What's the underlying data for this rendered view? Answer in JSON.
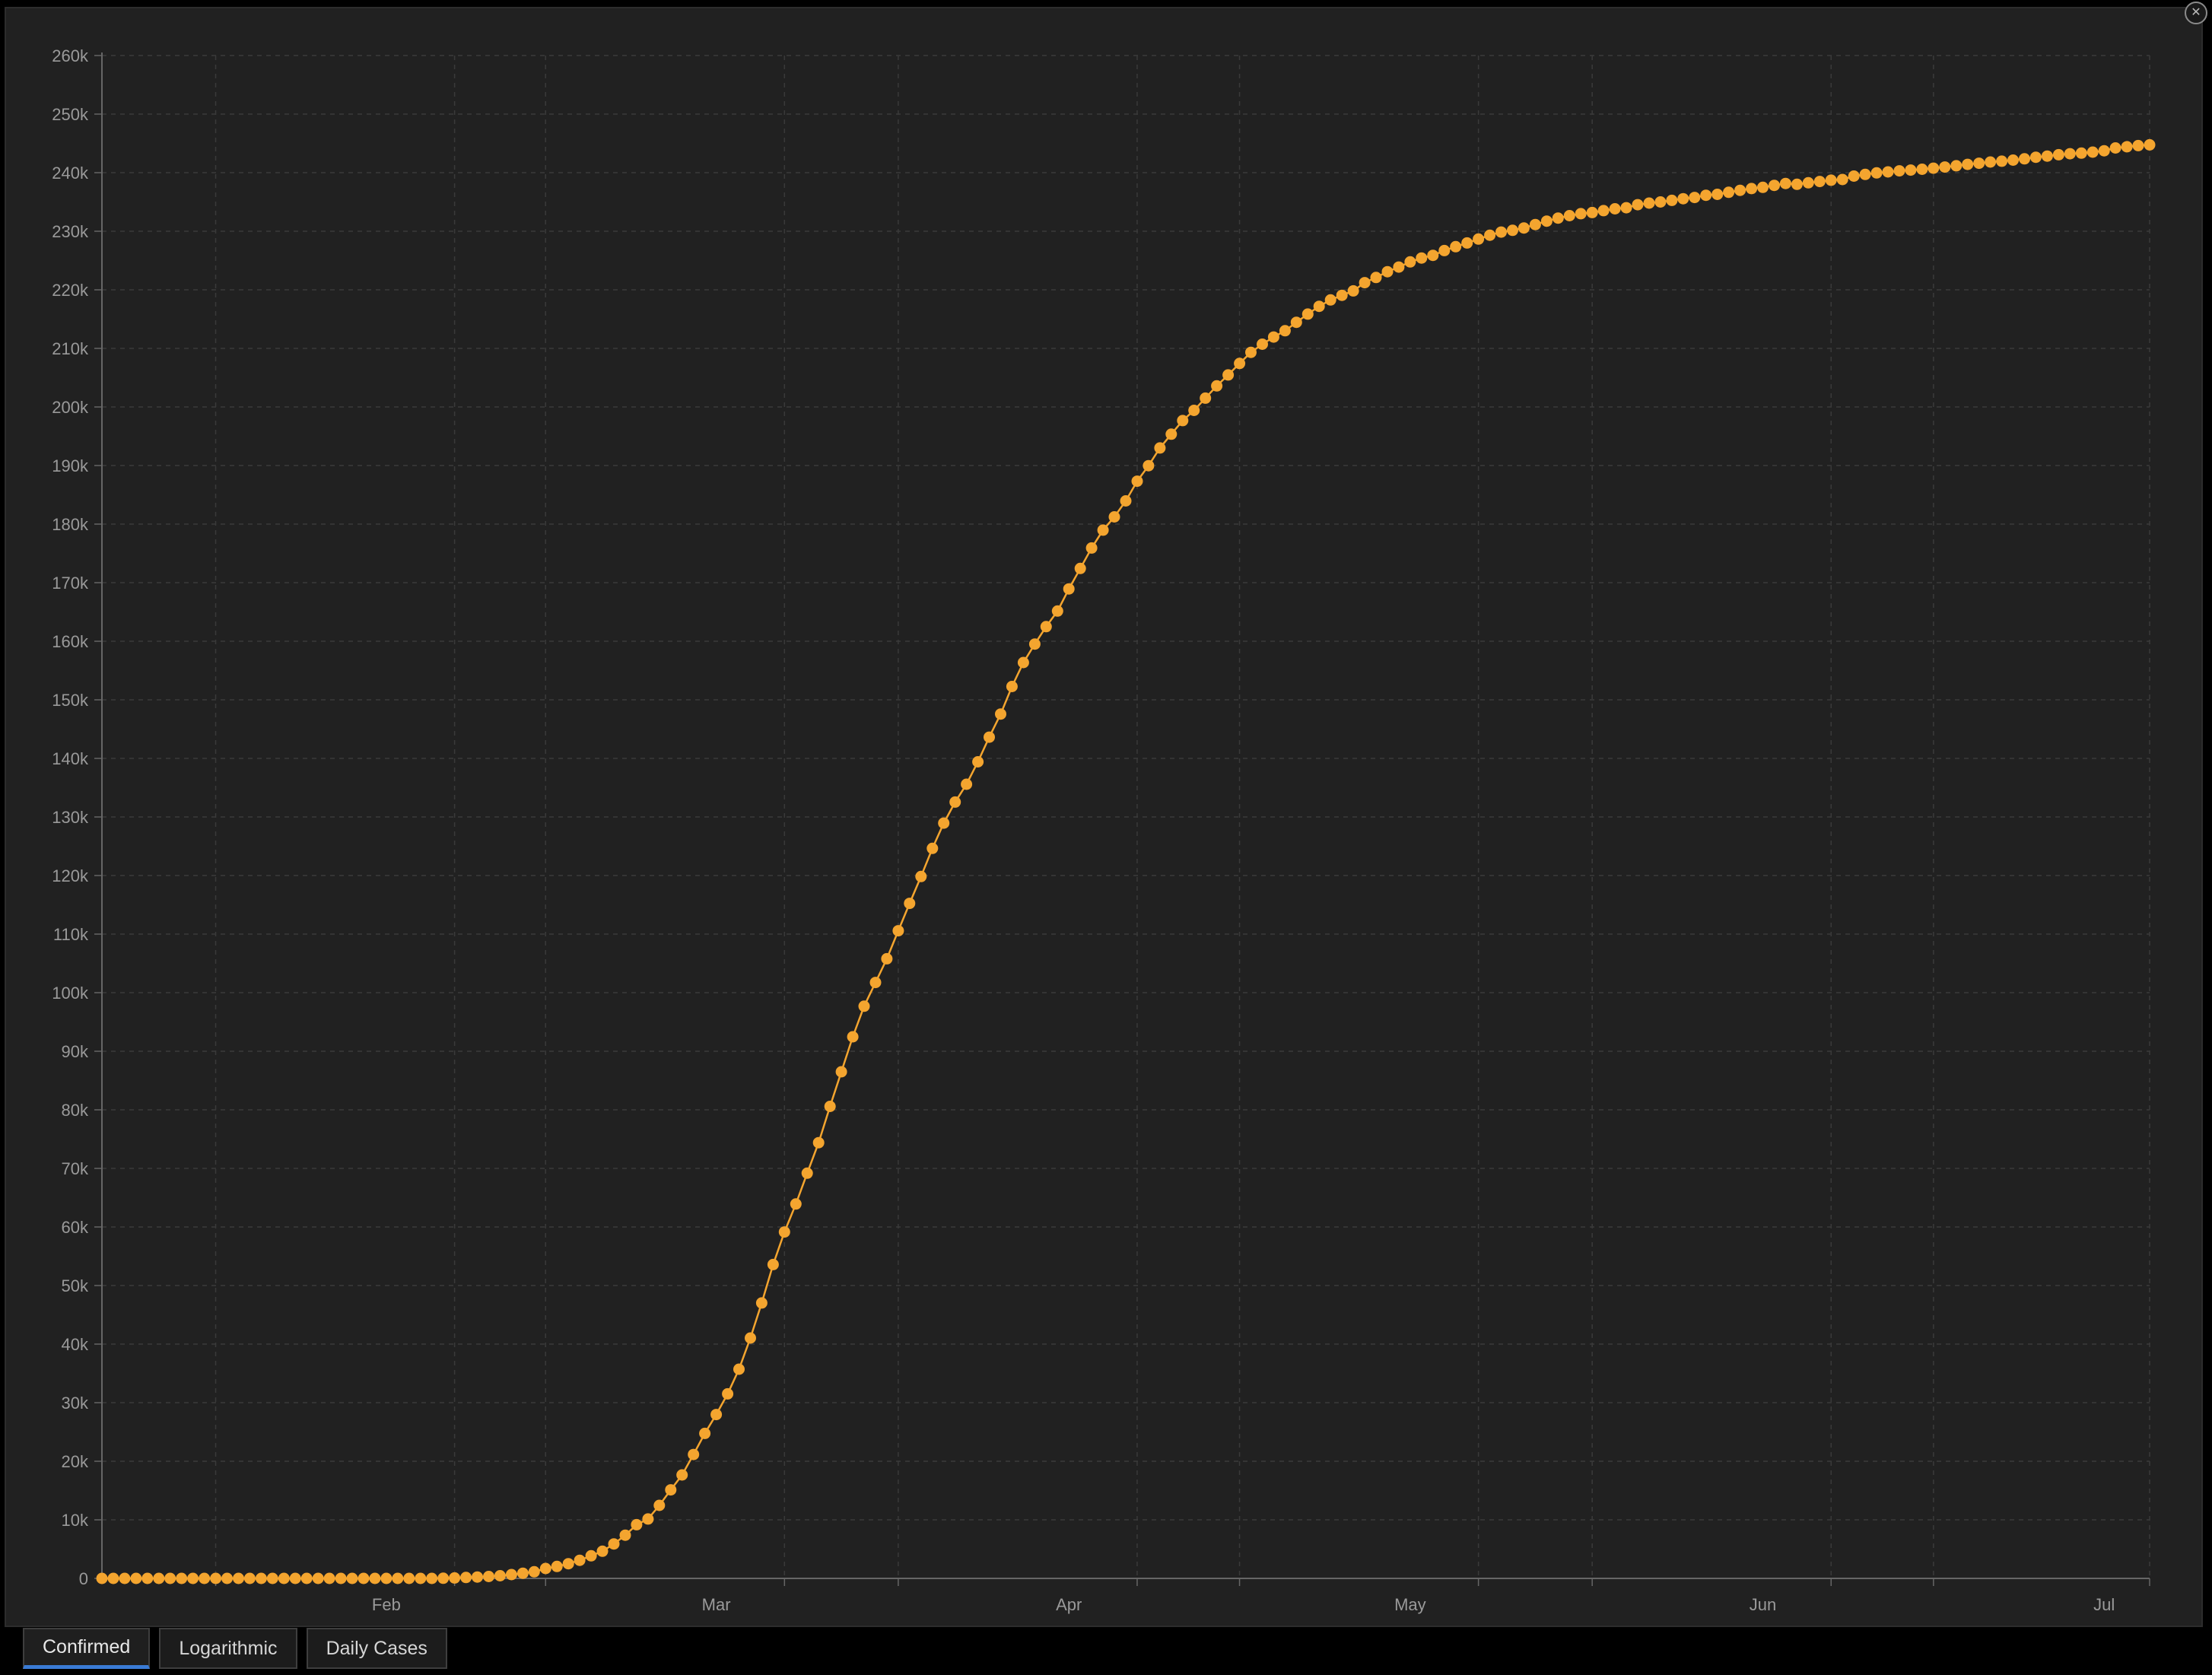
{
  "tabs": [
    {
      "label": "Confirmed",
      "active": true
    },
    {
      "label": "Logarithmic",
      "active": false
    },
    {
      "label": "Daily Cases",
      "active": false
    }
  ],
  "colors": {
    "series": "#f4a52f",
    "background": "#212121",
    "grid": "#3a3a3a",
    "tab_accent": "#3a7bd5"
  },
  "corner_icon": "collapse-icon",
  "chart_data": {
    "type": "line",
    "title": "",
    "xlabel": "",
    "ylabel": "",
    "ylim": [
      0,
      260000
    ],
    "xlim": [
      "2020-01-22",
      "2020-07-20"
    ],
    "grid": true,
    "x_tick_labels": [
      {
        "label": "Feb",
        "date": "2020-02-01"
      },
      {
        "label": "Mar",
        "date": "2020-03-01"
      },
      {
        "label": "Apr",
        "date": "2020-04-01"
      },
      {
        "label": "May",
        "date": "2020-05-01"
      },
      {
        "label": "Jun",
        "date": "2020-06-01"
      },
      {
        "label": "Jul",
        "date": "2020-07-01"
      }
    ],
    "x_gridlines": [
      "2020-02-01",
      "2020-02-22",
      "2020-03-01",
      "2020-03-22",
      "2020-04-01",
      "2020-04-22",
      "2020-05-01",
      "2020-05-22",
      "2020-06-01",
      "2020-06-22",
      "2020-07-01",
      "2020-07-20"
    ],
    "y_ticks": [
      {
        "label": "0",
        "value": 0
      },
      {
        "label": "10k",
        "value": 10000
      },
      {
        "label": "20k",
        "value": 20000
      },
      {
        "label": "30k",
        "value": 30000
      },
      {
        "label": "40k",
        "value": 40000
      },
      {
        "label": "50k",
        "value": 50000
      },
      {
        "label": "60k",
        "value": 60000
      },
      {
        "label": "70k",
        "value": 70000
      },
      {
        "label": "80k",
        "value": 80000
      },
      {
        "label": "90k",
        "value": 90000
      },
      {
        "label": "100k",
        "value": 100000
      },
      {
        "label": "110k",
        "value": 110000
      },
      {
        "label": "120k",
        "value": 120000
      },
      {
        "label": "130k",
        "value": 130000
      },
      {
        "label": "140k",
        "value": 140000
      },
      {
        "label": "150k",
        "value": 150000
      },
      {
        "label": "160k",
        "value": 160000
      },
      {
        "label": "170k",
        "value": 170000
      },
      {
        "label": "180k",
        "value": 180000
      },
      {
        "label": "190k",
        "value": 190000
      },
      {
        "label": "200k",
        "value": 200000
      },
      {
        "label": "210k",
        "value": 210000
      },
      {
        "label": "220k",
        "value": 220000
      },
      {
        "label": "230k",
        "value": 230000
      },
      {
        "label": "240k",
        "value": 240000
      },
      {
        "label": "250k",
        "value": 250000
      },
      {
        "label": "260k",
        "value": 260000
      }
    ],
    "series": [
      {
        "points": [
          [
            "2020-01-22",
            0
          ],
          [
            "2020-01-23",
            0
          ],
          [
            "2020-01-24",
            0
          ],
          [
            "2020-01-25",
            0
          ],
          [
            "2020-01-26",
            0
          ],
          [
            "2020-01-27",
            0
          ],
          [
            "2020-01-28",
            0
          ],
          [
            "2020-01-29",
            0
          ],
          [
            "2020-01-30",
            0
          ],
          [
            "2020-01-31",
            2
          ],
          [
            "2020-02-01",
            2
          ],
          [
            "2020-02-02",
            2
          ],
          [
            "2020-02-03",
            2
          ],
          [
            "2020-02-04",
            2
          ],
          [
            "2020-02-05",
            2
          ],
          [
            "2020-02-06",
            2
          ],
          [
            "2020-02-07",
            3
          ],
          [
            "2020-02-08",
            3
          ],
          [
            "2020-02-09",
            3
          ],
          [
            "2020-02-10",
            3
          ],
          [
            "2020-02-11",
            3
          ],
          [
            "2020-02-12",
            3
          ],
          [
            "2020-02-13",
            3
          ],
          [
            "2020-02-14",
            3
          ],
          [
            "2020-02-15",
            3
          ],
          [
            "2020-02-16",
            3
          ],
          [
            "2020-02-17",
            3
          ],
          [
            "2020-02-18",
            3
          ],
          [
            "2020-02-19",
            3
          ],
          [
            "2020-02-20",
            3
          ],
          [
            "2020-02-21",
            20
          ],
          [
            "2020-02-22",
            79
          ],
          [
            "2020-02-23",
            150
          ],
          [
            "2020-02-24",
            229
          ],
          [
            "2020-02-25",
            322
          ],
          [
            "2020-02-26",
            453
          ],
          [
            "2020-02-27",
            655
          ],
          [
            "2020-02-28",
            888
          ],
          [
            "2020-02-29",
            1128
          ],
          [
            "2020-03-01",
            1694
          ],
          [
            "2020-03-02",
            2036
          ],
          [
            "2020-03-03",
            2502
          ],
          [
            "2020-03-04",
            3089
          ],
          [
            "2020-03-05",
            3858
          ],
          [
            "2020-03-06",
            4636
          ],
          [
            "2020-03-07",
            5883
          ],
          [
            "2020-03-08",
            7375
          ],
          [
            "2020-03-09",
            9172
          ],
          [
            "2020-03-10",
            10149
          ],
          [
            "2020-03-11",
            12462
          ],
          [
            "2020-03-12",
            15113
          ],
          [
            "2020-03-13",
            17660
          ],
          [
            "2020-03-14",
            21157
          ],
          [
            "2020-03-15",
            24747
          ],
          [
            "2020-03-16",
            27980
          ],
          [
            "2020-03-17",
            31506
          ],
          [
            "2020-03-18",
            35713
          ],
          [
            "2020-03-19",
            41035
          ],
          [
            "2020-03-20",
            47021
          ],
          [
            "2020-03-21",
            53578
          ],
          [
            "2020-03-22",
            59138
          ],
          [
            "2020-03-23",
            63927
          ],
          [
            "2020-03-24",
            69176
          ],
          [
            "2020-03-25",
            74386
          ],
          [
            "2020-03-26",
            80589
          ],
          [
            "2020-03-27",
            86498
          ],
          [
            "2020-03-28",
            92472
          ],
          [
            "2020-03-29",
            97689
          ],
          [
            "2020-03-30",
            101739
          ],
          [
            "2020-03-31",
            105792
          ],
          [
            "2020-04-01",
            110574
          ],
          [
            "2020-04-02",
            115242
          ],
          [
            "2020-04-03",
            119827
          ],
          [
            "2020-04-04",
            124632
          ],
          [
            "2020-04-05",
            128948
          ],
          [
            "2020-04-06",
            132547
          ],
          [
            "2020-04-07",
            135586
          ],
          [
            "2020-04-08",
            139422
          ],
          [
            "2020-04-09",
            143626
          ],
          [
            "2020-04-10",
            147577
          ],
          [
            "2020-04-11",
            152271
          ],
          [
            "2020-04-12",
            156363
          ],
          [
            "2020-04-13",
            159516
          ],
          [
            "2020-04-14",
            162488
          ],
          [
            "2020-04-15",
            165155
          ],
          [
            "2020-04-16",
            168941
          ],
          [
            "2020-04-17",
            172434
          ],
          [
            "2020-04-18",
            175925
          ],
          [
            "2020-04-19",
            178972
          ],
          [
            "2020-04-20",
            181228
          ],
          [
            "2020-04-21",
            183957
          ],
          [
            "2020-04-22",
            187327
          ],
          [
            "2020-04-23",
            189973
          ],
          [
            "2020-04-24",
            192994
          ],
          [
            "2020-04-25",
            195351
          ],
          [
            "2020-04-26",
            197675
          ],
          [
            "2020-04-27",
            199414
          ],
          [
            "2020-04-28",
            201505
          ],
          [
            "2020-04-29",
            203591
          ],
          [
            "2020-04-30",
            205463
          ],
          [
            "2020-05-01",
            207428
          ],
          [
            "2020-05-02",
            209328
          ],
          [
            "2020-05-03",
            210717
          ],
          [
            "2020-05-04",
            211938
          ],
          [
            "2020-05-05",
            213013
          ],
          [
            "2020-05-06",
            214457
          ],
          [
            "2020-05-07",
            215858
          ],
          [
            "2020-05-08",
            217185
          ],
          [
            "2020-05-09",
            218268
          ],
          [
            "2020-05-10",
            219070
          ],
          [
            "2020-05-11",
            219814
          ],
          [
            "2020-05-12",
            221216
          ],
          [
            "2020-05-13",
            222104
          ],
          [
            "2020-05-14",
            223096
          ],
          [
            "2020-05-15",
            223885
          ],
          [
            "2020-05-16",
            224760
          ],
          [
            "2020-05-17",
            225435
          ],
          [
            "2020-05-18",
            225886
          ],
          [
            "2020-05-19",
            226699
          ],
          [
            "2020-05-20",
            227364
          ],
          [
            "2020-05-21",
            228006
          ],
          [
            "2020-05-22",
            228658
          ],
          [
            "2020-05-23",
            229327
          ],
          [
            "2020-05-24",
            229858
          ],
          [
            "2020-05-25",
            230158
          ],
          [
            "2020-05-26",
            230555
          ],
          [
            "2020-05-27",
            231139
          ],
          [
            "2020-05-28",
            231732
          ],
          [
            "2020-05-29",
            232248
          ],
          [
            "2020-05-30",
            232664
          ],
          [
            "2020-05-31",
            232997
          ],
          [
            "2020-06-01",
            233197
          ],
          [
            "2020-06-02",
            233515
          ],
          [
            "2020-06-03",
            233836
          ],
          [
            "2020-06-04",
            234013
          ],
          [
            "2020-06-05",
            234531
          ],
          [
            "2020-06-06",
            234801
          ],
          [
            "2020-06-07",
            234998
          ],
          [
            "2020-06-08",
            235278
          ],
          [
            "2020-06-09",
            235561
          ],
          [
            "2020-06-10",
            235763
          ],
          [
            "2020-06-11",
            236142
          ],
          [
            "2020-06-12",
            236305
          ],
          [
            "2020-06-13",
            236651
          ],
          [
            "2020-06-14",
            236989
          ],
          [
            "2020-06-15",
            237290
          ],
          [
            "2020-06-16",
            237500
          ],
          [
            "2020-06-17",
            237828
          ],
          [
            "2020-06-18",
            238159
          ],
          [
            "2020-06-19",
            238011
          ],
          [
            "2020-06-20",
            238275
          ],
          [
            "2020-06-21",
            238499
          ],
          [
            "2020-06-22",
            238720
          ],
          [
            "2020-06-23",
            238833
          ],
          [
            "2020-06-24",
            239410
          ],
          [
            "2020-06-25",
            239706
          ],
          [
            "2020-06-26",
            239961
          ],
          [
            "2020-06-27",
            240136
          ],
          [
            "2020-06-28",
            240310
          ],
          [
            "2020-06-29",
            240436
          ],
          [
            "2020-06-30",
            240578
          ],
          [
            "2020-07-01",
            240760
          ],
          [
            "2020-07-02",
            240961
          ],
          [
            "2020-07-03",
            241184
          ],
          [
            "2020-07-04",
            241419
          ],
          [
            "2020-07-05",
            241611
          ],
          [
            "2020-07-06",
            241819
          ],
          [
            "2020-07-07",
            241956
          ],
          [
            "2020-07-08",
            242149
          ],
          [
            "2020-07-09",
            242363
          ],
          [
            "2020-07-10",
            242639
          ],
          [
            "2020-07-11",
            242827
          ],
          [
            "2020-07-12",
            243061
          ],
          [
            "2020-07-13",
            243230
          ],
          [
            "2020-07-14",
            243344
          ],
          [
            "2020-07-15",
            243506
          ],
          [
            "2020-07-16",
            243736
          ],
          [
            "2020-07-17",
            244216
          ],
          [
            "2020-07-18",
            244434
          ],
          [
            "2020-07-19",
            244624
          ],
          [
            "2020-07-20",
            244752
          ]
        ]
      }
    ]
  }
}
